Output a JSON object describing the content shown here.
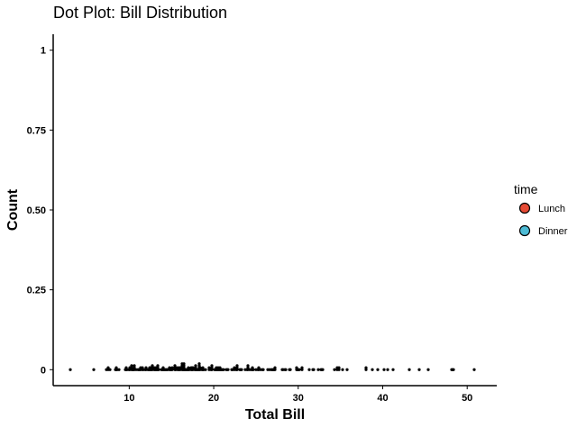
{
  "chart_data": {
    "type": "scatter",
    "title": "Dot Plot: Bill Distribution",
    "xlabel": "Total Bill",
    "ylabel": "Count",
    "xlim": [
      1,
      53.5
    ],
    "ylim": [
      -0.05,
      1.05
    ],
    "xticks": [
      10,
      20,
      30,
      40,
      50
    ],
    "yticks": [
      0,
      0.25,
      0.5,
      0.75,
      1
    ],
    "ytick_labels": [
      "0",
      "0.25",
      "0.50",
      "0.75",
      "1"
    ],
    "grid": false,
    "legend": {
      "title": "time",
      "placement": "right",
      "items": [
        {
          "label": "Lunch",
          "color": "#E64B35"
        },
        {
          "label": "Dinner",
          "color": "#4DBBD5"
        }
      ]
    },
    "points": {
      "y": 0,
      "x": [
        3.07,
        5.75,
        7.25,
        7.51,
        7.56,
        7.74,
        8.35,
        8.51,
        8.52,
        8.58,
        8.77,
        9.55,
        9.6,
        9.68,
        9.78,
        9.94,
        10.07,
        10.09,
        10.27,
        10.29,
        10.33,
        10.34,
        10.51,
        10.59,
        10.63,
        10.65,
        10.77,
        11.02,
        11.17,
        11.24,
        11.35,
        11.38,
        11.59,
        11.61,
        11.69,
        11.87,
        12.02,
        12.03,
        12.16,
        12.26,
        12.43,
        12.46,
        12.48,
        12.54,
        12.6,
        12.66,
        12.69,
        12.74,
        12.76,
        12.9,
        13.0,
        13.03,
        13.13,
        13.16,
        13.27,
        13.28,
        13.37,
        13.39,
        13.42,
        13.51,
        13.81,
        13.94,
        14.0,
        14.07,
        14.15,
        14.26,
        14.31,
        14.48,
        14.52,
        14.73,
        14.78,
        14.83,
        15.01,
        15.04,
        15.06,
        15.36,
        15.38,
        15.42,
        15.48,
        15.53,
        15.69,
        15.77,
        15.81,
        15.95,
        15.98,
        16.0,
        16.04,
        16.21,
        16.27,
        16.29,
        16.31,
        16.4,
        16.43,
        16.45,
        16.47,
        16.49,
        16.58,
        16.66,
        16.82,
        16.93,
        16.97,
        16.99,
        17.07,
        17.29,
        17.31,
        17.46,
        17.47,
        17.51,
        17.59,
        17.78,
        17.81,
        17.82,
        17.89,
        17.92,
        18.04,
        18.15,
        18.24,
        18.26,
        18.28,
        18.29,
        18.35,
        18.43,
        18.64,
        18.69,
        18.71,
        18.78,
        19.08,
        19.44,
        19.49,
        19.65,
        19.77,
        19.81,
        19.82,
        20.08,
        20.23,
        20.27,
        20.29,
        20.45,
        20.49,
        20.53,
        20.65,
        20.69,
        20.76,
        20.9,
        20.92,
        21.01,
        21.16,
        21.5,
        21.58,
        21.7,
        22.12,
        22.23,
        22.42,
        22.49,
        22.67,
        22.75,
        22.76,
        22.82,
        23.1,
        23.17,
        23.33,
        23.68,
        23.95,
        24.01,
        24.06,
        24.08,
        24.27,
        24.52,
        24.55,
        24.59,
        24.71,
        25.0,
        25.21,
        25.28,
        25.29,
        25.56,
        25.71,
        25.89,
        26.41,
        26.59,
        26.86,
        26.88,
        27.05,
        27.18,
        27.2,
        27.28,
        28.15,
        28.17,
        28.44,
        28.55,
        28.97,
        29.03,
        29.8,
        29.85,
        29.93,
        30.06,
        30.14,
        30.4,
        30.46,
        31.27,
        31.71,
        31.85,
        32.4,
        32.68,
        32.83,
        32.9,
        34.3,
        34.63,
        34.65,
        34.81,
        34.83,
        35.26,
        35.83,
        38.01,
        38.07,
        38.73,
        39.42,
        40.17,
        40.55,
        41.19,
        43.11,
        44.3,
        45.35,
        48.17,
        48.27,
        48.33,
        50.81
      ]
    }
  }
}
